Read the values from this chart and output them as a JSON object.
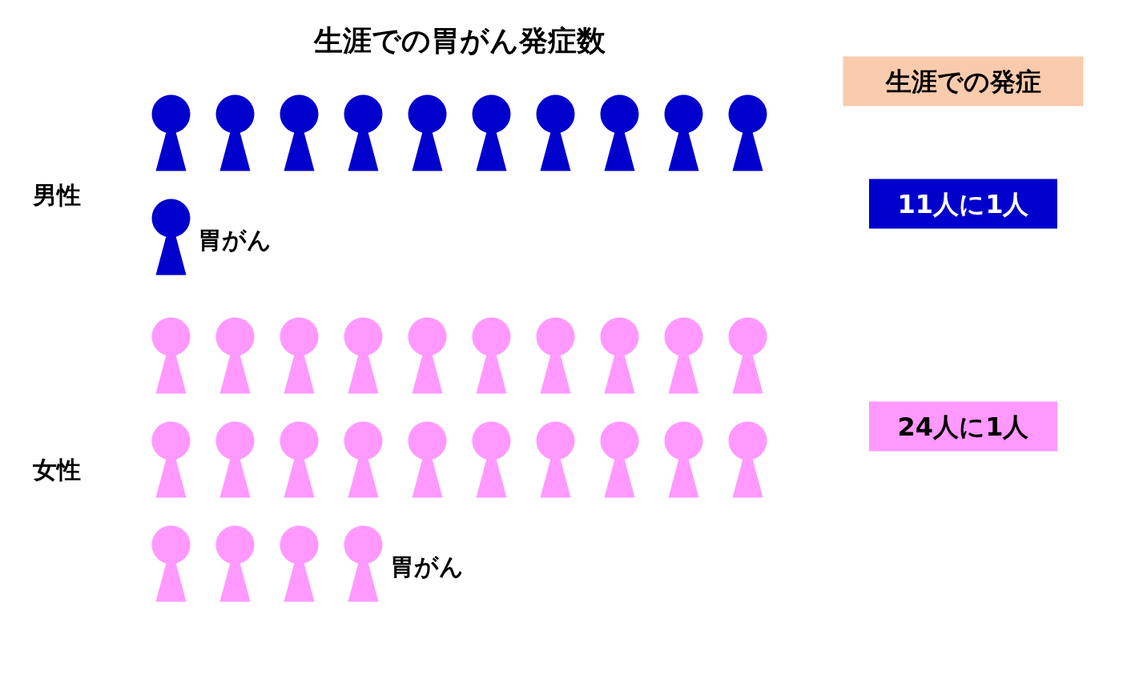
{
  "chart_data": {
    "type": "other",
    "title": "生涯での胃がん発症数",
    "legend_title": "生涯での発症",
    "categories": [
      "男性",
      "女性"
    ],
    "values": [
      11,
      24
    ],
    "colors": [
      "#0000cc",
      "#ff99ff"
    ],
    "value_labels": [
      "11人に1人",
      "24人に1人"
    ],
    "annotations": [
      {
        "text": "胃がん",
        "y": "男性"
      },
      {
        "text": "胃がん",
        "y": "女性"
      }
    ]
  }
}
